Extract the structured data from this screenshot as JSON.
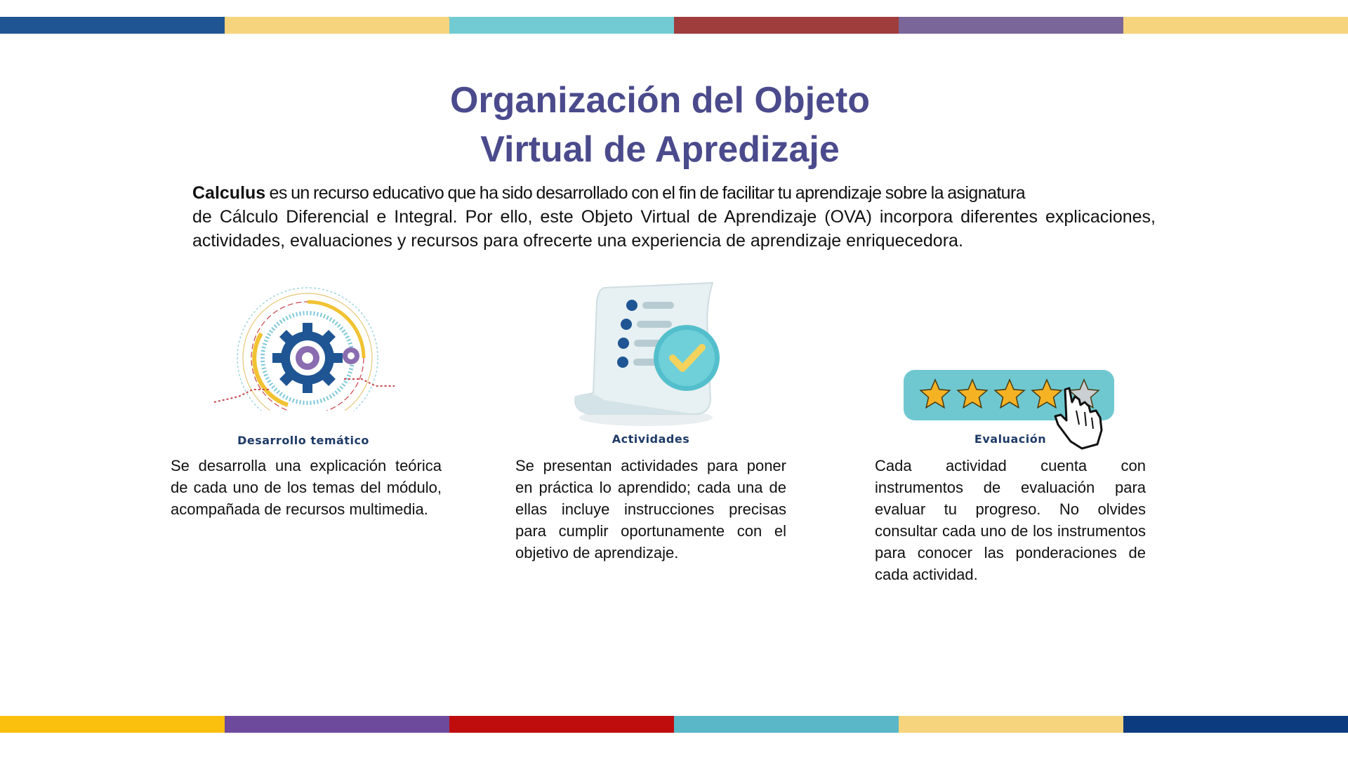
{
  "stripes": {
    "top": [
      "#1f5593",
      "#f6d47d",
      "#72cbd3",
      "#9f3d3d",
      "#7a6699",
      "#f6d47d"
    ],
    "bottom": [
      "#fbbf0d",
      "#6e4a9c",
      "#bf0d0d",
      "#5ab7c8",
      "#f6d47d",
      "#0d3b7f"
    ]
  },
  "title": {
    "line1": "Organización del Objeto",
    "line2": "Virtual de Apredizaje"
  },
  "intro": {
    "brand": "Calculus",
    "line1_rest": " es un recurso educativo que ha sido desarrollado con el fin de facilitar tu aprendizaje sobre la asignatura",
    "rest": "de Cálculo Diferencial e Integral. Por ello, este Objeto Virtual de Aprendizaje (OVA) incorpora diferentes explicaciones, actividades, evaluaciones y recursos para ofrecerte una experiencia de aprendizaje enriquecedora."
  },
  "sections": [
    {
      "icon": "gear-circuit-icon",
      "caption": "Desarrollo temático",
      "text": "Se desarrolla una explicación teórica de cada uno de los temas del módulo, acompañada de recursos multimedia."
    },
    {
      "icon": "checklist-scroll-icon",
      "caption": "Actividades",
      "text": "Se presentan actividades para poner en práctica lo aprendido; cada una de ellas incluye instrucciones precisas para cumplir oportunamente con el objetivo de aprendizaje."
    },
    {
      "icon": "star-rating-icon",
      "caption": "Evaluación",
      "text": "Cada actividad cuenta con instrumentos de evaluación para evaluar tu progreso. No olvides consultar cada uno de los instrumentos para conocer las ponderaciones de cada actividad."
    }
  ],
  "rating": {
    "filled_stars": 4,
    "total_stars": 5
  },
  "colors": {
    "title": "#4a4a8c",
    "caption": "#1e3a66",
    "gear": "#1f5593",
    "teal": "#6fc8d0",
    "star": "#f5b324"
  }
}
